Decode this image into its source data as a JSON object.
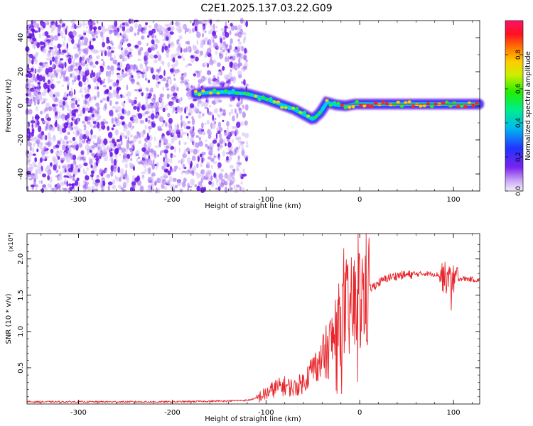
{
  "title": "C2E1.2025.137.03.22.G09",
  "colors": {
    "snr_line": "#e8262b",
    "noise_purple": "#7a22ee",
    "axis": "#000000"
  },
  "chart_data": [
    {
      "type": "heatmap",
      "xlabel": "Height of straight line (km)",
      "ylabel": "Frequency (Hz)",
      "xlim": [
        -355,
        128
      ],
      "ylim": [
        -50,
        50
      ],
      "xticks": [
        -300,
        -200,
        -100,
        0,
        100
      ],
      "yticks": [
        -40,
        -20,
        0,
        20,
        40
      ],
      "grid": false,
      "colorbar": {
        "label": "Normalized spectral amplitude",
        "range": [
          0,
          1
        ],
        "ticks": [
          "0.0",
          "0.2",
          "0.4",
          "0.6",
          "0.8"
        ],
        "colormap": "rainbow (white-purple-blue-cyan-green-yellow-red)"
      },
      "noise_region": {
        "x_range": [
          -355,
          -120
        ],
        "y_range": [
          -50,
          50
        ],
        "dominant_color": "purple"
      },
      "signal_track": {
        "x": [
          -175,
          -160,
          -140,
          -120,
          -100,
          -85,
          -70,
          -60,
          -50,
          -42,
          -35,
          -25,
          -15,
          -5,
          0,
          25,
          50,
          75,
          100,
          128
        ],
        "y": [
          7,
          8,
          8,
          7,
          4,
          1,
          -2,
          -5,
          -8,
          -4,
          2,
          0.5,
          0,
          1,
          1,
          1,
          1,
          1,
          1,
          1
        ]
      }
    },
    {
      "type": "line",
      "xlabel": "Height of straight line (km)",
      "ylabel": "SNR (10 * v/v)",
      "y_multiplier": "(x10⁴)",
      "xlim": [
        -355,
        128
      ],
      "ylim": [
        0,
        2.35
      ],
      "xticks": [
        -300,
        -200,
        -100,
        0,
        100
      ],
      "yticks": [
        "0.5",
        "1.0",
        "1.5",
        "2.0"
      ],
      "grid": false,
      "series": [
        {
          "x": [
            -355,
            -300,
            -250,
            -200,
            -150,
            -120,
            -110,
            -100,
            -90,
            -80,
            -70,
            -60,
            -50,
            -40,
            -30,
            -25,
            -20,
            -15,
            -10,
            -5,
            0,
            10,
            20,
            30,
            40,
            50,
            60,
            70,
            80,
            85,
            90,
            95,
            100,
            105,
            110,
            120,
            128
          ],
          "y": [
            0.03,
            0.03,
            0.03,
            0.03,
            0.04,
            0.05,
            0.08,
            0.14,
            0.22,
            0.25,
            0.22,
            0.3,
            0.5,
            0.6,
            0.85,
            1.0,
            1.15,
            1.25,
            1.3,
            1.35,
            1.45,
            1.58,
            1.67,
            1.74,
            1.77,
            1.78,
            1.79,
            1.8,
            1.79,
            1.78,
            1.75,
            1.7,
            1.72,
            1.73,
            1.73,
            1.72,
            1.7
          ]
        }
      ]
    }
  ]
}
